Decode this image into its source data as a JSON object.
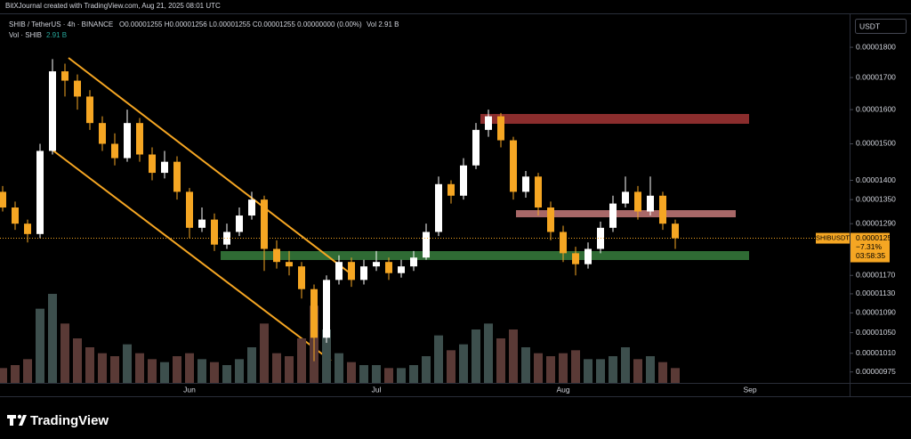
{
  "header": {
    "credit": "BitXJournal created with TradingView.com, Aug 21, 2025 08:01 UTC",
    "symbol": "SHIB / TetherUS · 4h · BINANCE",
    "ohlc": "O0.00001255 H0.00001256 L0.00001255 C0.00001255 0.00000000 (0.00%)",
    "vol": "Vol 2.91 B",
    "vol_study": "Vol · SHIB",
    "vol_study_value": "2.91 B"
  },
  "currency_button": "USDT",
  "price_label": {
    "symbol": "SHIBUSDT",
    "price": 1.255e-05,
    "change": "−7.31%",
    "countdown": "03:58:35"
  },
  "footer": "TradingView",
  "chart_data": {
    "type": "candlestick",
    "log_scale": true,
    "grid": false,
    "up_color": "#ffffff",
    "down_color": "#f5a623",
    "volume_up_color": "#3d4f4d",
    "volume_down_color": "#5a3a36",
    "ylim": [
      9.55e-06,
      1.919e-05
    ],
    "yticks": [
      {
        "value": 1.8e-05,
        "label": "0.00001800"
      },
      {
        "value": 1.7e-05,
        "label": "0.00001700"
      },
      {
        "value": 1.6e-05,
        "label": "0.00001600"
      },
      {
        "value": 1.5e-05,
        "label": "0.00001500"
      },
      {
        "value": 1.4e-05,
        "label": "0.00001400"
      },
      {
        "value": 1.35e-05,
        "label": "0.00001350"
      },
      {
        "value": 1.29e-05,
        "label": "0.00001290"
      },
      {
        "value": 1.17e-05,
        "label": "0.00001170"
      },
      {
        "value": 1.13e-05,
        "label": "0.00001130"
      },
      {
        "value": 1.09e-05,
        "label": "0.00001090"
      },
      {
        "value": 1.05e-05,
        "label": "0.00001050"
      },
      {
        "value": 1.01e-05,
        "label": "0.00001010"
      },
      {
        "value": 9.75e-06,
        "label": "0.00000975"
      }
    ],
    "categories": [
      null,
      null,
      null,
      null,
      null,
      null,
      null,
      null,
      null,
      null,
      null,
      null,
      null,
      null,
      null,
      "Jun",
      null,
      null,
      null,
      null,
      null,
      null,
      null,
      null,
      null,
      null,
      null,
      null,
      null,
      null,
      "Jul",
      null,
      null,
      null,
      null,
      null,
      null,
      null,
      null,
      null,
      null,
      null,
      null,
      null,
      null,
      "Aug",
      null,
      null,
      null,
      null,
      null,
      null,
      null,
      null,
      null,
      null,
      null,
      null,
      null,
      null,
      "Sep",
      null,
      null,
      null,
      null,
      null,
      null,
      null
    ],
    "open": [
      1.37e-05,
      1.33e-05,
      1.29e-05,
      1.265e-05,
      1.48e-05,
      1.72e-05,
      1.69e-05,
      1.64e-05,
      1.56e-05,
      1.5e-05,
      1.46e-05,
      1.56e-05,
      1.47e-05,
      1.42e-05,
      1.45e-05,
      1.37e-05,
      1.28e-05,
      1.3e-05,
      1.24e-05,
      1.27e-05,
      1.31e-05,
      1.35e-05,
      1.23e-05,
      1.2e-05,
      1.19e-05,
      1.14e-05,
      1.04e-05,
      1.16e-05,
      1.2e-05,
      1.16e-05,
      1.19e-05,
      1.2e-05,
      1.175e-05,
      1.19e-05,
      1.21e-05,
      1.27e-05,
      1.39e-05,
      1.36e-05,
      1.44e-05,
      1.54e-05,
      1.58e-05,
      1.51e-05,
      1.37e-05,
      1.41e-05,
      1.33e-05,
      1.27e-05,
      1.22e-05,
      1.195e-05,
      1.23e-05,
      1.28e-05,
      1.34e-05,
      1.37e-05,
      1.32e-05,
      1.36e-05,
      1.29e-05,
      null,
      null,
      null,
      null,
      null,
      null,
      null,
      null,
      null,
      null,
      null,
      null,
      null
    ],
    "high": [
      1.385e-05,
      1.345e-05,
      1.3e-05,
      1.5e-05,
      1.76e-05,
      1.745e-05,
      1.71e-05,
      1.66e-05,
      1.58e-05,
      1.53e-05,
      1.6e-05,
      1.575e-05,
      1.49e-05,
      1.48e-05,
      1.465e-05,
      1.38e-05,
      1.33e-05,
      1.315e-05,
      1.29e-05,
      1.33e-05,
      1.37e-05,
      1.36e-05,
      1.25e-05,
      1.225e-05,
      1.2e-05,
      1.15e-05,
      1.17e-05,
      1.215e-05,
      1.21e-05,
      1.205e-05,
      1.225e-05,
      1.21e-05,
      1.205e-05,
      1.225e-05,
      1.29e-05,
      1.41e-05,
      1.4e-05,
      1.46e-05,
      1.56e-05,
      1.6e-05,
      1.59e-05,
      1.52e-05,
      1.425e-05,
      1.42e-05,
      1.345e-05,
      1.285e-05,
      1.235e-05,
      1.245e-05,
      1.295e-05,
      1.36e-05,
      1.41e-05,
      1.385e-05,
      1.41e-05,
      1.37e-05,
      1.3e-05,
      null,
      null,
      null,
      null,
      null,
      null,
      null,
      null,
      null,
      null,
      null,
      null,
      null
    ],
    "low": [
      1.32e-05,
      1.275e-05,
      1.245e-05,
      1.255e-05,
      1.47e-05,
      1.64e-05,
      1.6e-05,
      1.54e-05,
      1.48e-05,
      1.44e-05,
      1.45e-05,
      1.45e-05,
      1.4e-05,
      1.405e-05,
      1.35e-05,
      1.255e-05,
      1.27e-05,
      1.225e-05,
      1.23e-05,
      1.26e-05,
      1.3e-05,
      1.18e-05,
      1.185e-05,
      1.17e-05,
      1.12e-05,
      9.95e-06,
      1.03e-05,
      1.15e-05,
      1.145e-05,
      1.15e-05,
      1.18e-05,
      1.16e-05,
      1.165e-05,
      1.18e-05,
      1.205e-05,
      1.26e-05,
      1.34e-05,
      1.35e-05,
      1.43e-05,
      1.52e-05,
      1.49e-05,
      1.35e-05,
      1.355e-05,
      1.31e-05,
      1.25e-05,
      1.2e-05,
      1.17e-05,
      1.185e-05,
      1.22e-05,
      1.27e-05,
      1.33e-05,
      1.3e-05,
      1.31e-05,
      1.275e-05,
      1.23e-05,
      null,
      null,
      null,
      null,
      null,
      null,
      null,
      null,
      null,
      null,
      null,
      null,
      null
    ],
    "close": [
      1.33e-05,
      1.29e-05,
      1.265e-05,
      1.48e-05,
      1.72e-05,
      1.69e-05,
      1.64e-05,
      1.56e-05,
      1.5e-05,
      1.46e-05,
      1.56e-05,
      1.47e-05,
      1.42e-05,
      1.45e-05,
      1.37e-05,
      1.28e-05,
      1.3e-05,
      1.24e-05,
      1.27e-05,
      1.31e-05,
      1.35e-05,
      1.23e-05,
      1.2e-05,
      1.19e-05,
      1.14e-05,
      1.04e-05,
      1.16e-05,
      1.2e-05,
      1.16e-05,
      1.19e-05,
      1.2e-05,
      1.175e-05,
      1.19e-05,
      1.21e-05,
      1.27e-05,
      1.39e-05,
      1.36e-05,
      1.44e-05,
      1.54e-05,
      1.58e-05,
      1.51e-05,
      1.37e-05,
      1.41e-05,
      1.33e-05,
      1.27e-05,
      1.22e-05,
      1.195e-05,
      1.23e-05,
      1.28e-05,
      1.34e-05,
      1.37e-05,
      1.32e-05,
      1.36e-05,
      1.29e-05,
      1.255e-05,
      null,
      null,
      null,
      null,
      null,
      null,
      null,
      null,
      null,
      null,
      null,
      null,
      null
    ],
    "volume": [
      50000000000.0,
      60000000000.0,
      80000000000.0,
      250000000000.0,
      300000000000.0,
      200000000000.0,
      150000000000.0,
      120000000000.0,
      100000000000.0,
      90000000000.0,
      130000000000.0,
      100000000000.0,
      80000000000.0,
      70000000000.0,
      90000000000.0,
      100000000000.0,
      80000000000.0,
      70000000000.0,
      60000000000.0,
      80000000000.0,
      120000000000.0,
      200000000000.0,
      100000000000.0,
      90000000000.0,
      150000000000.0,
      260000000000.0,
      180000000000.0,
      100000000000.0,
      70000000000.0,
      60000000000.0,
      60000000000.0,
      50000000000.0,
      50000000000.0,
      60000000000.0,
      90000000000.0,
      160000000000.0,
      110000000000.0,
      130000000000.0,
      180000000000.0,
      200000000000.0,
      150000000000.0,
      180000000000.0,
      120000000000.0,
      100000000000.0,
      90000000000.0,
      100000000000.0,
      110000000000.0,
      80000000000.0,
      80000000000.0,
      90000000000.0,
      120000000000.0,
      80000000000.0,
      90000000000.0,
      70000000000.0,
      50000000000.0,
      null,
      null,
      null,
      null,
      null,
      null,
      null,
      null,
      null,
      null,
      null,
      null,
      null
    ]
  }
}
